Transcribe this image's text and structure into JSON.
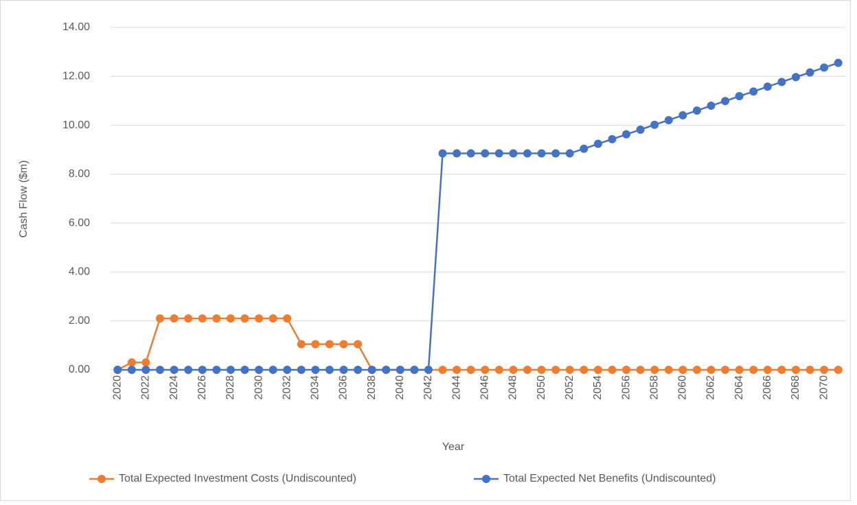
{
  "chart_data": {
    "type": "line",
    "xlabel": "Year",
    "ylabel": "Cash Flow ($m)",
    "categories": [
      "2020",
      null,
      "2022",
      null,
      "2024",
      null,
      "2026",
      null,
      "2028",
      null,
      "2030",
      null,
      "2032",
      null,
      "2034",
      null,
      "2036",
      null,
      "2038",
      null,
      "2040",
      null,
      "2042",
      null,
      "2044",
      null,
      "2046",
      null,
      "2048",
      null,
      "2050",
      null,
      "2052",
      null,
      "2054",
      null,
      "2056",
      null,
      "2058",
      null,
      "2060",
      null,
      "2062",
      null,
      "2064",
      null,
      "2066",
      null,
      "2068",
      null,
      "2070",
      null
    ],
    "series": [
      {
        "name": "Total Expected Investment Costs (Undiscounted)",
        "color": "#ED7D31",
        "values": [
          0,
          0.3,
          0.3,
          2.1,
          2.1,
          2.1,
          2.1,
          2.1,
          2.1,
          2.1,
          2.1,
          2.1,
          2.1,
          1.05,
          1.05,
          1.05,
          1.05,
          1.05,
          0,
          0,
          0,
          0,
          0,
          0,
          0,
          0,
          0,
          0,
          0,
          0,
          0,
          0,
          0,
          0,
          0,
          0,
          0,
          0,
          0,
          0,
          0,
          0,
          0,
          0,
          0,
          0,
          0,
          0,
          0,
          0,
          0,
          0
        ]
      },
      {
        "name": "Total Expected Net Benefits (Undiscounted)",
        "color": "#4472C4",
        "values": [
          0,
          0,
          0,
          0,
          0,
          0,
          0,
          0,
          0,
          0,
          0,
          0,
          0,
          0,
          0,
          0,
          0,
          0,
          0,
          0,
          0,
          0,
          0,
          8.85,
          8.85,
          8.85,
          8.85,
          8.85,
          8.85,
          8.85,
          8.85,
          8.85,
          8.85,
          9.04,
          9.24,
          9.43,
          9.63,
          9.82,
          10.02,
          10.21,
          10.41,
          10.6,
          10.8,
          10.99,
          11.19,
          11.38,
          11.58,
          11.77,
          11.97,
          12.16,
          12.36,
          12.55
        ]
      }
    ],
    "ylim": [
      0,
      14
    ],
    "yticks": [
      {
        "value": 0,
        "label": "0.00"
      },
      {
        "value": 2,
        "label": "2.00"
      },
      {
        "value": 4,
        "label": "4.00"
      },
      {
        "value": 6,
        "label": "6.00"
      },
      {
        "value": 8,
        "label": "8.00"
      },
      {
        "value": 10,
        "label": "10.00"
      },
      {
        "value": 12,
        "label": "12.00"
      },
      {
        "value": 14,
        "label": "14.00"
      }
    ],
    "grid": true,
    "legend": "bottom"
  }
}
